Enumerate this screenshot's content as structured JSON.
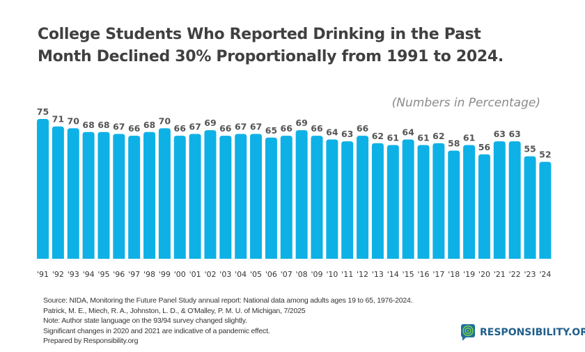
{
  "chart_data": {
    "type": "bar",
    "title": "College Students Who Reported Drinking in the Past Month Declined 30% Proportionally from 1991 to 2024.",
    "title_lines": [
      "College Students Who Reported Drinking in the Past",
      "Month Declined 30% Proportionally from 1991 to 2024."
    ],
    "subtitle": "(Numbers in Percentage)",
    "categories": [
      "'91",
      "'92",
      "'93",
      "'94",
      "'95",
      "'96",
      "'97",
      "'98",
      "'99",
      "'00",
      "'01",
      "'02",
      "'03",
      "'04",
      "'05",
      "'06",
      "'07",
      "'08",
      "'09",
      "'10",
      "'11",
      "'12",
      "'13",
      "'14",
      "'15",
      "'16",
      "'17",
      "'18",
      "'19",
      "'20",
      "'21",
      "'22",
      "'23",
      "'24"
    ],
    "values": [
      75,
      71,
      70,
      68,
      68,
      67,
      66,
      68,
      70,
      66,
      67,
      69,
      66,
      67,
      67,
      65,
      66,
      69,
      66,
      64,
      63,
      66,
      62,
      61,
      64,
      61,
      62,
      58,
      61,
      56,
      63,
      63,
      55,
      52
    ],
    "xlabel": "",
    "ylabel": "",
    "ylim": [
      0,
      75
    ],
    "grid": false,
    "bar_color": "#0eb1e6"
  },
  "notes": [
    "Source: NIDA, Monitoring the Future Panel Study annual report: National data among adults ages 19 to 65, 1976-2024.",
    "Patrick, M. E., Miech, R. A., Johnston, L. D., & O'Malley, P. M. U. of Michigan, 7/2025",
    "Note: Author state language on the 93/94 survey changed slightly.",
    "Significant changes in 2020 and 2021 are indicative of a pandemic effect.",
    "Prepared by Responsibility.org"
  ],
  "logo": {
    "text": "RESPONSIBILITY.ORG",
    "icon": "target-speech-bubble-icon"
  }
}
